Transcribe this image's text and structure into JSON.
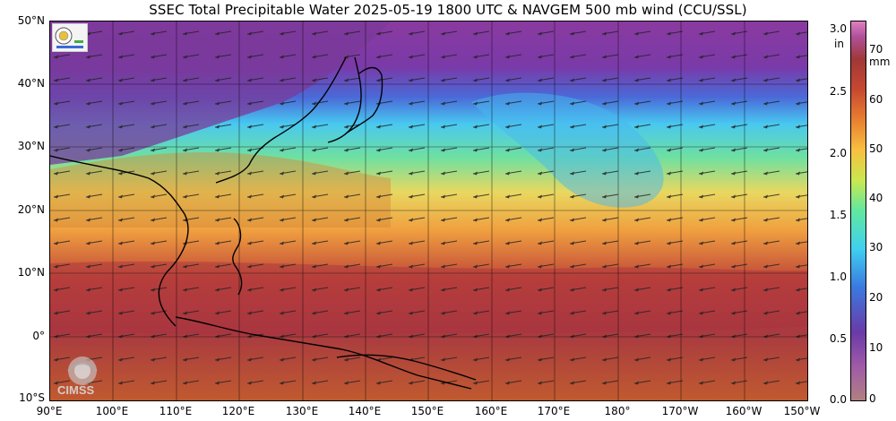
{
  "title": "SSEC Total Precipitable Water  2025-05-19 1800 UTC & NAVGEM 500 mb wind (CCU/SSL)",
  "lat_labels": [
    "50°N",
    "40°N",
    "30°N",
    "20°N",
    "10°N",
    "0°",
    "10°S"
  ],
  "lon_labels": [
    "90°E",
    "100°E",
    "110°E",
    "120°E",
    "130°E",
    "140°E",
    "150°E",
    "160°E",
    "170°E",
    "180°",
    "170°W",
    "160°W",
    "150°W"
  ],
  "colorbar": {
    "inch_unit": "in",
    "mm_unit": "mm",
    "inch_ticks": [
      "3.0",
      "2.5",
      "2.0",
      "1.5",
      "1.0",
      "0.5",
      "0.0"
    ],
    "mm_ticks": [
      "70",
      "60",
      "50",
      "40",
      "30",
      "20",
      "10",
      "0"
    ],
    "colors": [
      "#b08080",
      "#a05aa8",
      "#6a3aa8",
      "#3a7ae0",
      "#40d0f0",
      "#60e8a0",
      "#c8e850",
      "#f8c040",
      "#e88030",
      "#c84830",
      "#a03838",
      "#b0509a",
      "#e080c0"
    ]
  },
  "logos": {
    "ssec": "SSEC",
    "cimss": "CIMSS"
  }
}
